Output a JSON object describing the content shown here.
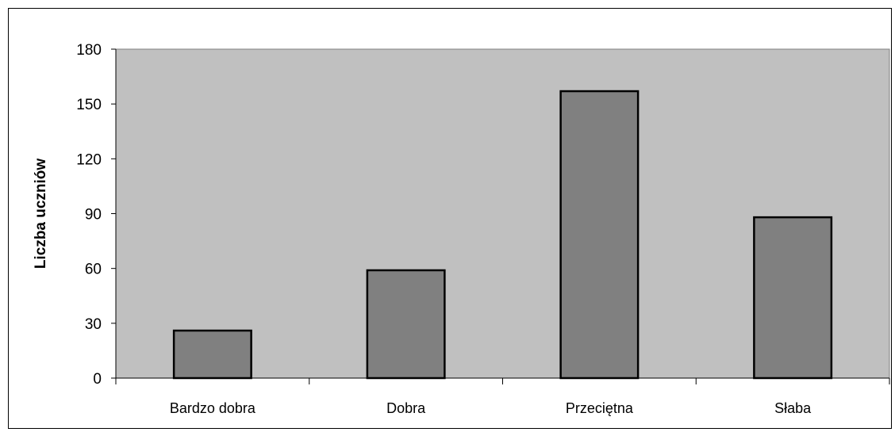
{
  "chart_data": {
    "type": "bar",
    "title": "",
    "xlabel": "",
    "ylabel": "Liczba uczniów",
    "categories": [
      "Bardzo dobra",
      "Dobra",
      "Przeciętna",
      "Słaba"
    ],
    "values": [
      26,
      59,
      157,
      88
    ],
    "ylim": [
      0,
      180
    ],
    "yticks": [
      0,
      30,
      60,
      90,
      120,
      150,
      180
    ],
    "grid": false,
    "legend": "none",
    "colors": {
      "plot_background": "#c0c0c0",
      "bar_fill": "#808080",
      "bar_stroke": "#000000",
      "axis": "#000000"
    }
  }
}
